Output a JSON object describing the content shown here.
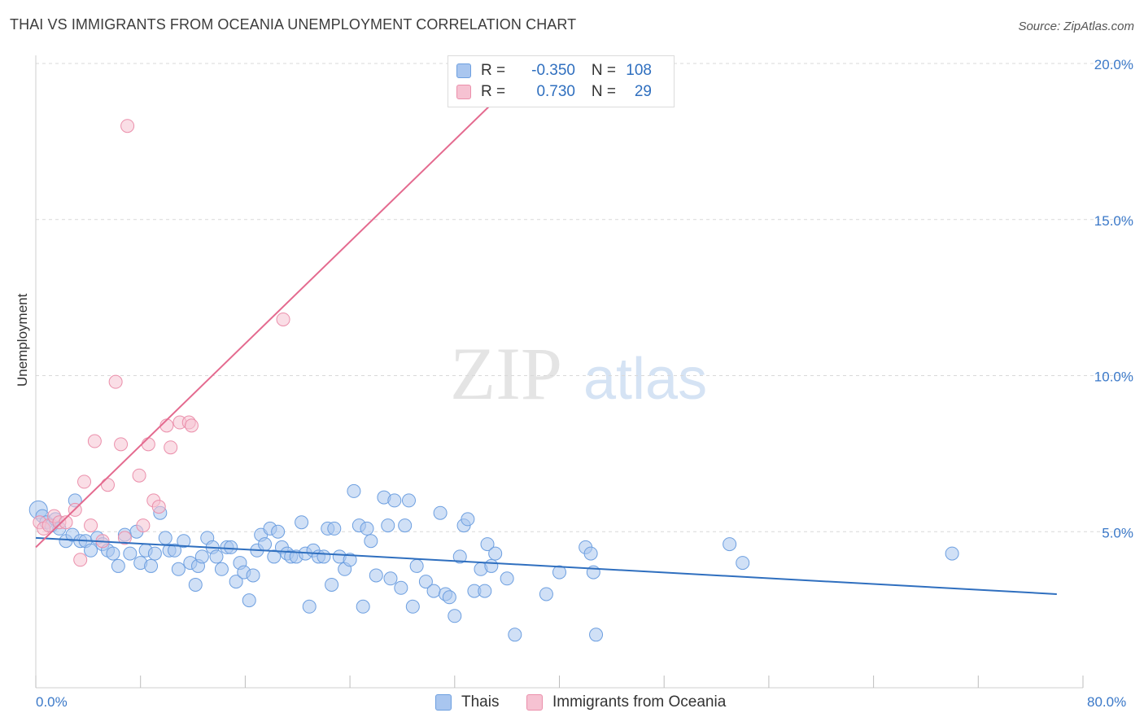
{
  "header": {
    "title": "THAI VS IMMIGRANTS FROM OCEANIA UNEMPLOYMENT CORRELATION CHART",
    "source": "Source: ZipAtlas.com"
  },
  "legend": {
    "r_label": "R =",
    "n_label": "N =",
    "thais": {
      "r": "-0.350",
      "n": "108"
    },
    "oceania": {
      "r": "0.730",
      "n": "29"
    }
  },
  "watermark": {
    "zip": "ZIP",
    "atlas": "atlas"
  },
  "colors": {
    "thais_fill": "#a9c6ef",
    "thais_stroke": "#6d9fe0",
    "thais_line": "#2f6fbf",
    "oceania_fill": "#f6c2d2",
    "oceania_stroke": "#eb8fab",
    "oceania_line": "#e46a8f",
    "tick_text": "#3a78c8",
    "grid": "#d9d9d9"
  },
  "chart_data": {
    "type": "scatter",
    "title": "THAI VS IMMIGRANTS FROM OCEANIA UNEMPLOYMENT CORRELATION CHART",
    "xlabel": "",
    "ylabel": "Unemployment",
    "xlim": [
      0,
      80
    ],
    "ylim": [
      0,
      20
    ],
    "x_tick_labels": [
      "0.0%",
      "80.0%"
    ],
    "y_ticks": [
      5,
      10,
      15,
      20
    ],
    "y_tick_labels": [
      "5.0%",
      "10.0%",
      "15.0%",
      "20.0%"
    ],
    "grid": "horizontal dashed",
    "legend_position": "bottom",
    "series": [
      {
        "name": "Thais",
        "r": -0.35,
        "n": 108,
        "trend": {
          "x": [
            0,
            78
          ],
          "y": [
            4.8,
            3.0
          ]
        },
        "points": [
          [
            0.2,
            5.7
          ],
          [
            0.5,
            5.5
          ],
          [
            0.8,
            5.3
          ],
          [
            1.2,
            5.2
          ],
          [
            1.5,
            5.4
          ],
          [
            1.8,
            5.1
          ],
          [
            2.3,
            4.7
          ],
          [
            2.8,
            4.9
          ],
          [
            3.0,
            6.0
          ],
          [
            3.4,
            4.7
          ],
          [
            3.8,
            4.7
          ],
          [
            4.2,
            4.4
          ],
          [
            4.7,
            4.8
          ],
          [
            5.1,
            4.6
          ],
          [
            5.5,
            4.4
          ],
          [
            5.9,
            4.3
          ],
          [
            6.3,
            3.9
          ],
          [
            6.8,
            4.9
          ],
          [
            7.2,
            4.3
          ],
          [
            7.7,
            5.0
          ],
          [
            8.0,
            4.0
          ],
          [
            8.4,
            4.4
          ],
          [
            8.8,
            3.9
          ],
          [
            9.1,
            4.3
          ],
          [
            9.5,
            5.6
          ],
          [
            9.9,
            4.8
          ],
          [
            10.2,
            4.4
          ],
          [
            10.6,
            4.4
          ],
          [
            10.9,
            3.8
          ],
          [
            11.3,
            4.7
          ],
          [
            11.8,
            4.0
          ],
          [
            12.2,
            3.3
          ],
          [
            12.4,
            3.9
          ],
          [
            12.7,
            4.2
          ],
          [
            13.1,
            4.8
          ],
          [
            13.5,
            4.5
          ],
          [
            13.8,
            4.2
          ],
          [
            14.2,
            3.8
          ],
          [
            14.6,
            4.5
          ],
          [
            14.9,
            4.5
          ],
          [
            15.3,
            3.4
          ],
          [
            15.6,
            4.0
          ],
          [
            15.9,
            3.7
          ],
          [
            16.3,
            2.8
          ],
          [
            16.6,
            3.6
          ],
          [
            16.9,
            4.4
          ],
          [
            17.2,
            4.9
          ],
          [
            17.5,
            4.6
          ],
          [
            17.9,
            5.1
          ],
          [
            18.2,
            4.2
          ],
          [
            18.5,
            5.0
          ],
          [
            18.8,
            4.5
          ],
          [
            19.2,
            4.3
          ],
          [
            19.5,
            4.2
          ],
          [
            19.9,
            4.2
          ],
          [
            20.3,
            5.3
          ],
          [
            20.6,
            4.3
          ],
          [
            20.9,
            2.6
          ],
          [
            21.2,
            4.4
          ],
          [
            21.6,
            4.2
          ],
          [
            22.0,
            4.2
          ],
          [
            22.3,
            5.1
          ],
          [
            22.6,
            3.3
          ],
          [
            22.8,
            5.1
          ],
          [
            23.2,
            4.2
          ],
          [
            23.6,
            3.8
          ],
          [
            24.0,
            4.1
          ],
          [
            24.3,
            6.3
          ],
          [
            24.7,
            5.2
          ],
          [
            25.0,
            2.6
          ],
          [
            25.3,
            5.1
          ],
          [
            25.6,
            4.7
          ],
          [
            26.0,
            3.6
          ],
          [
            26.6,
            6.1
          ],
          [
            26.9,
            5.2
          ],
          [
            27.1,
            3.5
          ],
          [
            27.4,
            6.0
          ],
          [
            27.9,
            3.2
          ],
          [
            28.2,
            5.2
          ],
          [
            28.5,
            6.0
          ],
          [
            28.8,
            2.6
          ],
          [
            29.1,
            3.9
          ],
          [
            29.8,
            3.4
          ],
          [
            30.4,
            3.1
          ],
          [
            30.9,
            5.6
          ],
          [
            31.3,
            3.0
          ],
          [
            31.6,
            2.9
          ],
          [
            32.0,
            2.3
          ],
          [
            32.4,
            4.2
          ],
          [
            32.7,
            5.2
          ],
          [
            33.0,
            5.4
          ],
          [
            33.5,
            3.1
          ],
          [
            34.0,
            3.8
          ],
          [
            34.3,
            3.1
          ],
          [
            34.5,
            4.6
          ],
          [
            34.8,
            3.9
          ],
          [
            35.1,
            4.3
          ],
          [
            36.0,
            3.5
          ],
          [
            36.6,
            1.7
          ],
          [
            39.0,
            3.0
          ],
          [
            40.0,
            3.7
          ],
          [
            42.0,
            4.5
          ],
          [
            42.4,
            4.3
          ],
          [
            42.6,
            3.7
          ],
          [
            42.8,
            1.7
          ],
          [
            53.0,
            4.6
          ],
          [
            54.0,
            4.0
          ],
          [
            70.0,
            4.3
          ]
        ]
      },
      {
        "name": "Immigrants from Oceania",
        "r": 0.73,
        "n": 29,
        "trend": {
          "x": [
            0,
            38.0
          ],
          "y": [
            4.5,
            20.0
          ]
        },
        "points": [
          [
            0.3,
            5.3
          ],
          [
            0.6,
            5.1
          ],
          [
            1.0,
            5.2
          ],
          [
            1.4,
            5.5
          ],
          [
            1.8,
            5.3
          ],
          [
            2.3,
            5.3
          ],
          [
            3.0,
            5.7
          ],
          [
            3.4,
            4.1
          ],
          [
            3.7,
            6.6
          ],
          [
            4.2,
            5.2
          ],
          [
            4.5,
            7.9
          ],
          [
            5.1,
            4.7
          ],
          [
            5.5,
            6.5
          ],
          [
            6.1,
            9.8
          ],
          [
            6.5,
            7.8
          ],
          [
            6.8,
            4.8
          ],
          [
            7.0,
            18.0
          ],
          [
            7.9,
            6.8
          ],
          [
            8.2,
            5.2
          ],
          [
            8.6,
            7.8
          ],
          [
            9.0,
            6.0
          ],
          [
            9.4,
            5.8
          ],
          [
            10.0,
            8.4
          ],
          [
            10.3,
            7.7
          ],
          [
            11.0,
            8.5
          ],
          [
            11.7,
            8.5
          ],
          [
            11.9,
            8.4
          ],
          [
            18.9,
            11.8
          ],
          [
            32.0,
            19.4
          ]
        ]
      }
    ]
  },
  "bottom_legend": {
    "thais": "Thais",
    "oceania": "Immigrants from Oceania"
  }
}
